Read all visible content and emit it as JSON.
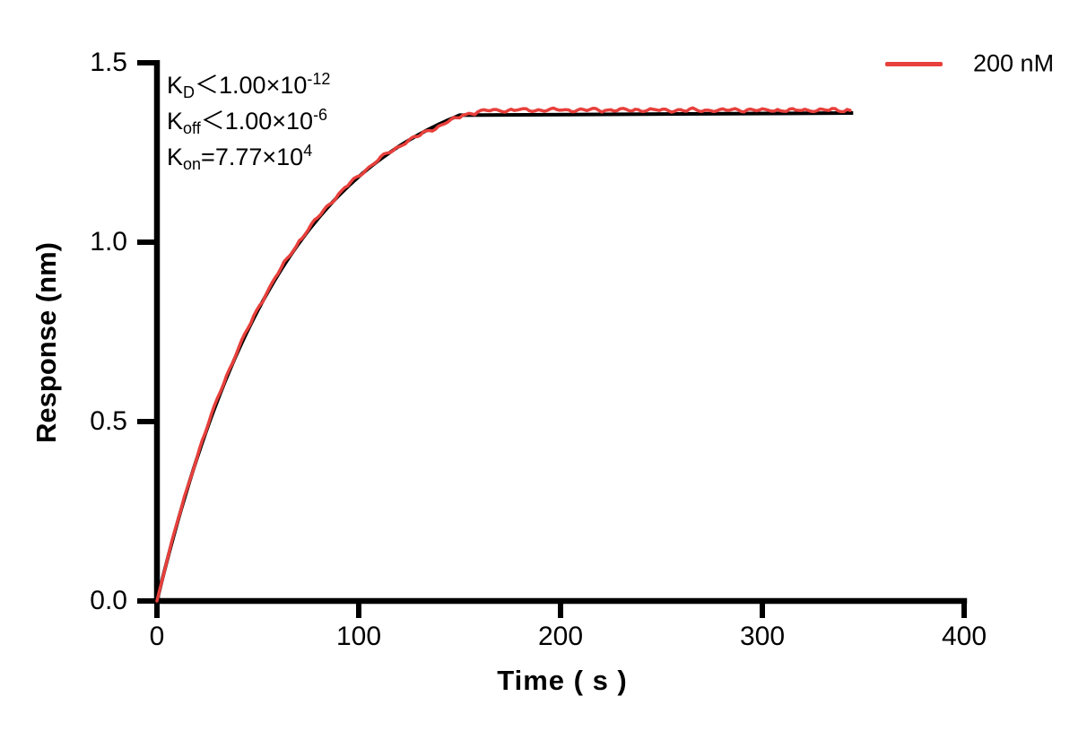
{
  "chart_data": {
    "type": "line",
    "title": "",
    "xlabel": "Time ( s )",
    "ylabel": "Response (nm)",
    "xlim": [
      0,
      400
    ],
    "ylim": [
      0,
      1.5
    ],
    "xticks": [
      0,
      100,
      200,
      300,
      400
    ],
    "yticks": [
      "0.0",
      "0.5",
      "1.0",
      "1.5"
    ],
    "grid": false,
    "legend_position": "top-right-outside",
    "axis_color": "#000000",
    "annotations": [
      {
        "name": "K",
        "sub": "D",
        "op": "＜",
        "mantissa": "1.00×10",
        "exponent": "-12"
      },
      {
        "name": "K",
        "sub": "off",
        "op": "＜",
        "mantissa": "1.00×10",
        "exponent": "-6"
      },
      {
        "name": "K",
        "sub": "on",
        "op": "=",
        "mantissa": "7.77×10",
        "exponent": "4"
      }
    ],
    "legend": [
      {
        "label": "200 nM",
        "color": "#E8403C"
      }
    ],
    "series": [
      {
        "name": "200 nM",
        "role": "measured",
        "color": "#E8403C",
        "points": {
          "t": [
            0,
            25,
            50,
            75,
            100,
            125,
            150,
            175,
            200,
            225,
            250,
            275,
            300,
            325,
            344
          ],
          "response": [
            0,
            0.48,
            0.81,
            1.03,
            1.18,
            1.28,
            1.35,
            1.37,
            1.37,
            1.37,
            1.37,
            1.37,
            1.37,
            1.37,
            1.37
          ]
        }
      },
      {
        "name": "fit",
        "role": "fit",
        "color": "#000000",
        "model": {
          "rmax": 1.5,
          "tau_s": 64.4,
          "association_end_s": 151,
          "plateau": 1.36,
          "end_s": 345
        }
      }
    ]
  }
}
